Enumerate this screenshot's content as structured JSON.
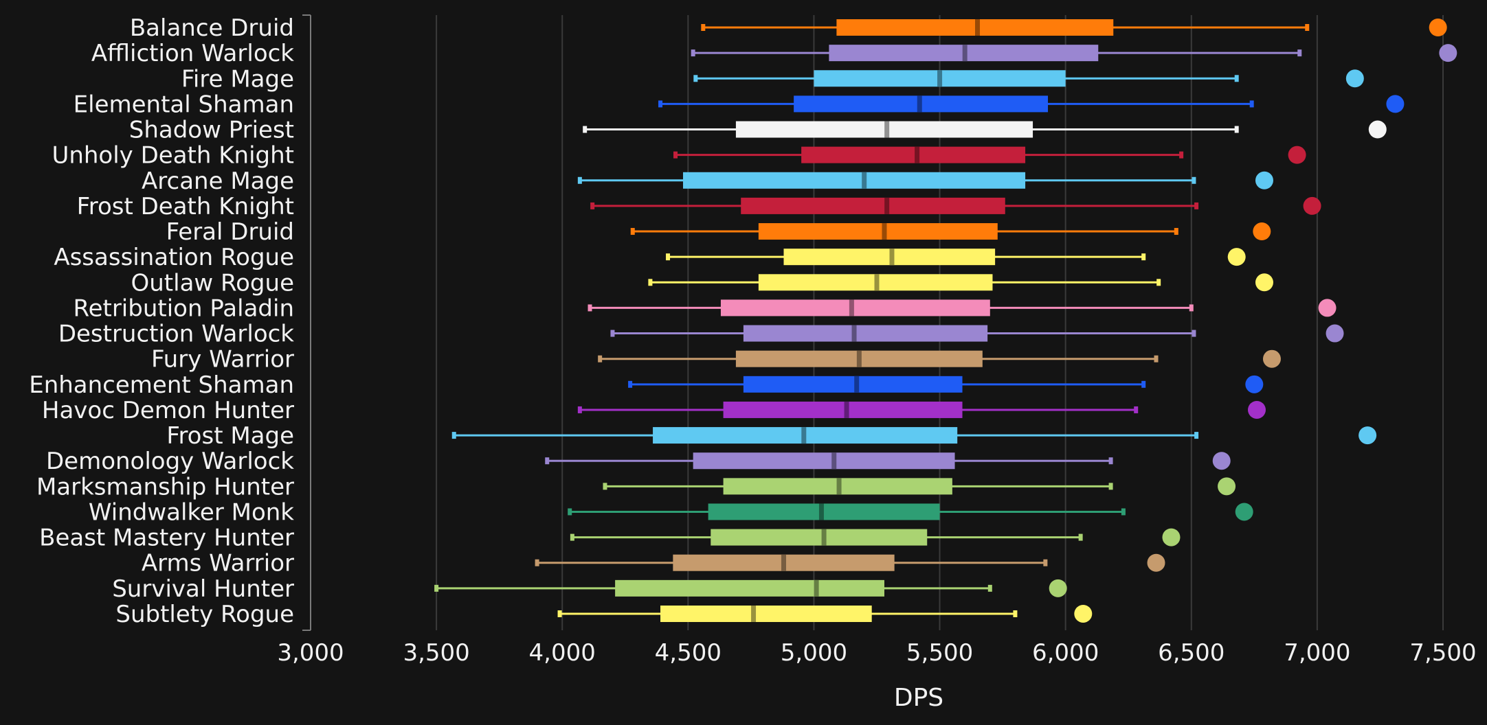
{
  "chart_data": {
    "type": "box",
    "xlabel": "DPS",
    "xlim": [
      3000,
      7500
    ],
    "xticks": [
      3000,
      3500,
      4000,
      4500,
      5000,
      5500,
      6000,
      6500,
      7000,
      7500
    ],
    "xtick_labels": [
      "3,000",
      "3,500",
      "4,000",
      "4,500",
      "5,000",
      "5,500",
      "6,000",
      "6,500",
      "7,000",
      "7,500"
    ],
    "grid": "vertical",
    "series": [
      {
        "name": "Balance Druid",
        "color": "#ff7c0a",
        "min": 4560,
        "q1": 5090,
        "median": 5650,
        "q3": 6190,
        "max": 6960,
        "max_point": 7480
      },
      {
        "name": "Affliction Warlock",
        "color": "#9a86d1",
        "min": 4520,
        "q1": 5060,
        "median": 5600,
        "q3": 6130,
        "max": 6930,
        "max_point": 7520
      },
      {
        "name": "Fire Mage",
        "color": "#5fc9f2",
        "min": 4530,
        "q1": 5000,
        "median": 5500,
        "q3": 6000,
        "max": 6680,
        "max_point": 7150
      },
      {
        "name": "Elemental Shaman",
        "color": "#1f5cf5",
        "min": 4390,
        "q1": 4920,
        "median": 5420,
        "q3": 5930,
        "max": 6740,
        "max_point": 7310
      },
      {
        "name": "Shadow Priest",
        "color": "#f4f4f4",
        "min": 4090,
        "q1": 4690,
        "median": 5290,
        "q3": 5870,
        "max": 6680,
        "max_point": 7240
      },
      {
        "name": "Unholy Death Knight",
        "color": "#c41f3b",
        "min": 4450,
        "q1": 4950,
        "median": 5410,
        "q3": 5840,
        "max": 6460,
        "max_point": 6920
      },
      {
        "name": "Arcane Mage",
        "color": "#5fc9f2",
        "min": 4070,
        "q1": 4480,
        "median": 5200,
        "q3": 5840,
        "max": 6510,
        "max_point": 6790
      },
      {
        "name": "Frost Death Knight",
        "color": "#c41f3b",
        "min": 4120,
        "q1": 4710,
        "median": 5290,
        "q3": 5760,
        "max": 6520,
        "max_point": 6980
      },
      {
        "name": "Feral Druid",
        "color": "#ff7c0a",
        "min": 4280,
        "q1": 4780,
        "median": 5280,
        "q3": 5730,
        "max": 6440,
        "max_point": 6780
      },
      {
        "name": "Assassination Rogue",
        "color": "#fff468",
        "min": 4420,
        "q1": 4880,
        "median": 5310,
        "q3": 5720,
        "max": 6310,
        "max_point": 6680
      },
      {
        "name": "Outlaw Rogue",
        "color": "#fff468",
        "min": 4350,
        "q1": 4780,
        "median": 5250,
        "q3": 5710,
        "max": 6370,
        "max_point": 6790
      },
      {
        "name": "Retribution Paladin",
        "color": "#f48cba",
        "min": 4110,
        "q1": 4630,
        "median": 5150,
        "q3": 5700,
        "max": 6500,
        "max_point": 7040
      },
      {
        "name": "Destruction Warlock",
        "color": "#9a86d1",
        "min": 4200,
        "q1": 4720,
        "median": 5160,
        "q3": 5690,
        "max": 6510,
        "max_point": 7070
      },
      {
        "name": "Fury Warrior",
        "color": "#c69b6d",
        "min": 4150,
        "q1": 4690,
        "median": 5180,
        "q3": 5670,
        "max": 6360,
        "max_point": 6820
      },
      {
        "name": "Enhancement Shaman",
        "color": "#1f5cf5",
        "min": 4270,
        "q1": 4720,
        "median": 5170,
        "q3": 5590,
        "max": 6310,
        "max_point": 6750
      },
      {
        "name": "Havoc Demon Hunter",
        "color": "#a330c9",
        "min": 4070,
        "q1": 4640,
        "median": 5130,
        "q3": 5590,
        "max": 6280,
        "max_point": 6760
      },
      {
        "name": "Frost Mage",
        "color": "#5fc9f2",
        "min": 3570,
        "q1": 4360,
        "median": 4960,
        "q3": 5570,
        "max": 6520,
        "max_point": 7200
      },
      {
        "name": "Demonology Warlock",
        "color": "#9a86d1",
        "min": 3940,
        "q1": 4520,
        "median": 5080,
        "q3": 5560,
        "max": 6180,
        "max_point": 6620
      },
      {
        "name": "Marksmanship Hunter",
        "color": "#aad372",
        "min": 4170,
        "q1": 4640,
        "median": 5100,
        "q3": 5550,
        "max": 6180,
        "max_point": 6640
      },
      {
        "name": "Windwalker Monk",
        "color": "#2e9e74",
        "min": 4030,
        "q1": 4580,
        "median": 5030,
        "q3": 5500,
        "max": 6230,
        "max_point": 6710
      },
      {
        "name": "Beast Mastery Hunter",
        "color": "#aad372",
        "min": 4040,
        "q1": 4590,
        "median": 5040,
        "q3": 5450,
        "max": 6060,
        "max_point": 6420
      },
      {
        "name": "Arms Warrior",
        "color": "#c69b6d",
        "min": 3900,
        "q1": 4440,
        "median": 4880,
        "q3": 5320,
        "max": 5920,
        "max_point": 6360
      },
      {
        "name": "Survival Hunter",
        "color": "#aad372",
        "min": 3500,
        "q1": 4210,
        "median": 5010,
        "q3": 5280,
        "max": 5700,
        "max_point": 5970
      },
      {
        "name": "Subtlety Rogue",
        "color": "#fff468",
        "min": 3990,
        "q1": 4390,
        "median": 4760,
        "q3": 5230,
        "max": 5800,
        "max_point": 6070
      }
    ]
  }
}
